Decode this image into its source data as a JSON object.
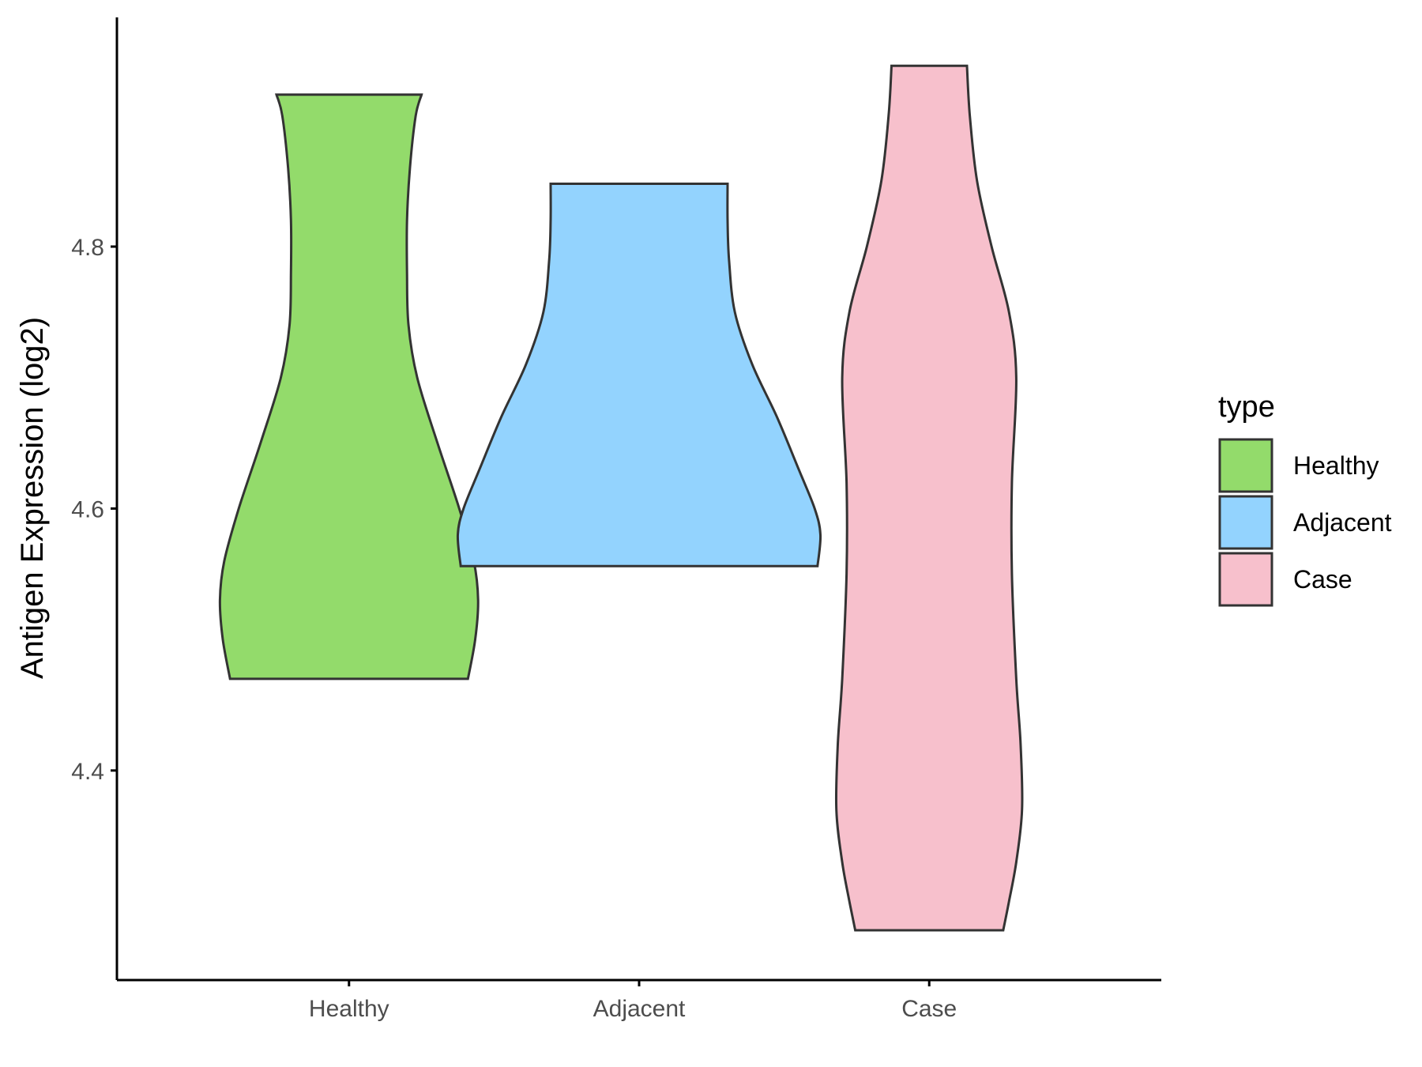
{
  "chart_data": {
    "type": "violin",
    "title": "",
    "xlabel": "",
    "ylabel": "Antigen Expression (log2)",
    "ylim": [
      4.24,
      4.975
    ],
    "y_ticks": [
      "4.4",
      "4.6",
      "4.8"
    ],
    "categories": [
      "Healthy",
      "Adjacent",
      "Case"
    ],
    "grid": false,
    "legend": {
      "title": "type",
      "position": "right",
      "entries": [
        {
          "label": "Healthy",
          "color": "#93DB6B"
        },
        {
          "label": "Adjacent",
          "color": "#93D3FE"
        },
        {
          "label": "Case",
          "color": "#F7C0CC"
        }
      ]
    },
    "series": [
      {
        "category": "Healthy",
        "color": "#93DB6B",
        "min": 4.47,
        "max": 4.916,
        "density_profile": [
          [
            4.47,
            0.82
          ],
          [
            4.5,
            0.87
          ],
          [
            4.53,
            0.89
          ],
          [
            4.56,
            0.86
          ],
          [
            4.6,
            0.76
          ],
          [
            4.65,
            0.61
          ],
          [
            4.7,
            0.47
          ],
          [
            4.74,
            0.41
          ],
          [
            4.78,
            0.4
          ],
          [
            4.82,
            0.4
          ],
          [
            4.86,
            0.42
          ],
          [
            4.9,
            0.46
          ],
          [
            4.916,
            0.5
          ]
        ]
      },
      {
        "category": "Adjacent",
        "color": "#93D3FE",
        "min": 4.556,
        "max": 4.848,
        "density_profile": [
          [
            4.556,
            1.23
          ],
          [
            4.58,
            1.25
          ],
          [
            4.6,
            1.21
          ],
          [
            4.63,
            1.1
          ],
          [
            4.67,
            0.95
          ],
          [
            4.71,
            0.78
          ],
          [
            4.75,
            0.66
          ],
          [
            4.79,
            0.62
          ],
          [
            4.82,
            0.61
          ],
          [
            4.848,
            0.61
          ]
        ]
      },
      {
        "category": "Case",
        "color": "#F7C0CC",
        "min": 4.278,
        "max": 4.938,
        "density_profile": [
          [
            4.278,
            0.51
          ],
          [
            4.3,
            0.55
          ],
          [
            4.33,
            0.6
          ],
          [
            4.37,
            0.64
          ],
          [
            4.42,
            0.63
          ],
          [
            4.47,
            0.6
          ],
          [
            4.55,
            0.57
          ],
          [
            4.62,
            0.57
          ],
          [
            4.7,
            0.6
          ],
          [
            4.75,
            0.55
          ],
          [
            4.8,
            0.43
          ],
          [
            4.85,
            0.33
          ],
          [
            4.9,
            0.28
          ],
          [
            4.938,
            0.26
          ]
        ]
      }
    ]
  }
}
